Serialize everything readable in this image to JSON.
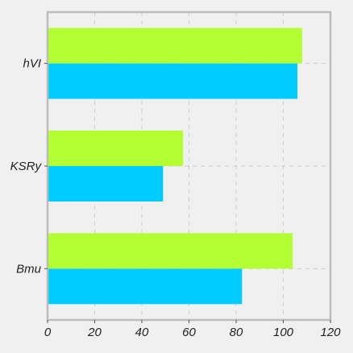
{
  "chart_data": {
    "type": "bar",
    "orientation": "horizontal",
    "categories": [
      "Bmu",
      "KSRy",
      "hVI"
    ],
    "series": [
      {
        "values": [
          82.5,
          49,
          106
        ],
        "color": "#00ccff"
      },
      {
        "values": [
          104,
          57.5,
          108
        ],
        "color": "#b3ff33"
      }
    ],
    "x_ticks": [
      "0",
      "20",
      "40",
      "60",
      "80",
      "100",
      "120"
    ],
    "xlim": [
      0,
      120
    ],
    "grid": true,
    "grid_color": "#cccccc",
    "background_color": "#f0f0f0",
    "axes_edge_color": "#bcbcbc"
  }
}
